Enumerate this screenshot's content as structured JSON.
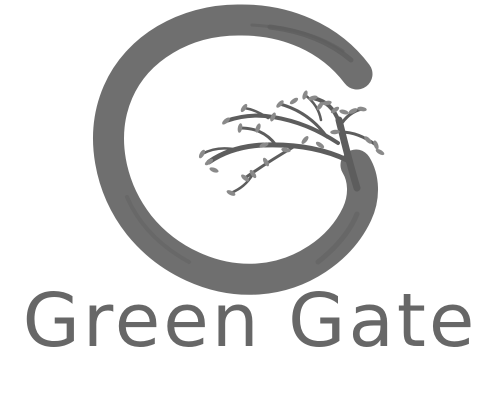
{
  "logo": {
    "brand_name": "Green Gate",
    "icon": "enso-circle-tree-icon",
    "colors": {
      "mark": "#6f6f6f",
      "mark_dark": "#5d5d5d",
      "leaf": "#8a8a8a",
      "text": "#676767",
      "background": "#ffffff"
    }
  }
}
